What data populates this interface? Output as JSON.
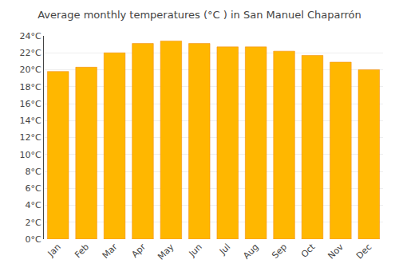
{
  "chart_data": {
    "type": "bar",
    "title": "Average monthly temperatures (°C ) in San Manuel Chaparrón",
    "categories": [
      "Jan",
      "Feb",
      "Mar",
      "Apr",
      "May",
      "Jun",
      "Jul",
      "Aug",
      "Sep",
      "Oct",
      "Nov",
      "Dec"
    ],
    "values": [
      19.8,
      20.3,
      22.0,
      23.1,
      23.4,
      23.1,
      22.7,
      22.7,
      22.2,
      21.7,
      20.9,
      20.0
    ],
    "color": "#FFB700",
    "ylim": [
      0,
      24
    ],
    "yticks": [
      {
        "value": 0,
        "label": "0°C"
      },
      {
        "value": 2,
        "label": "2°C"
      },
      {
        "value": 4,
        "label": "4°C"
      },
      {
        "value": 6,
        "label": "6°C"
      },
      {
        "value": 8,
        "label": "8°C"
      },
      {
        "value": 10,
        "label": "10°C"
      },
      {
        "value": 12,
        "label": "12°C"
      },
      {
        "value": 14,
        "label": "14°C"
      },
      {
        "value": 16,
        "label": "16°C"
      },
      {
        "value": 18,
        "label": "18°C"
      },
      {
        "value": 20,
        "label": "20°C"
      },
      {
        "value": 22,
        "label": "22°C"
      },
      {
        "value": 24,
        "label": "24°C"
      }
    ],
    "grid": true
  }
}
